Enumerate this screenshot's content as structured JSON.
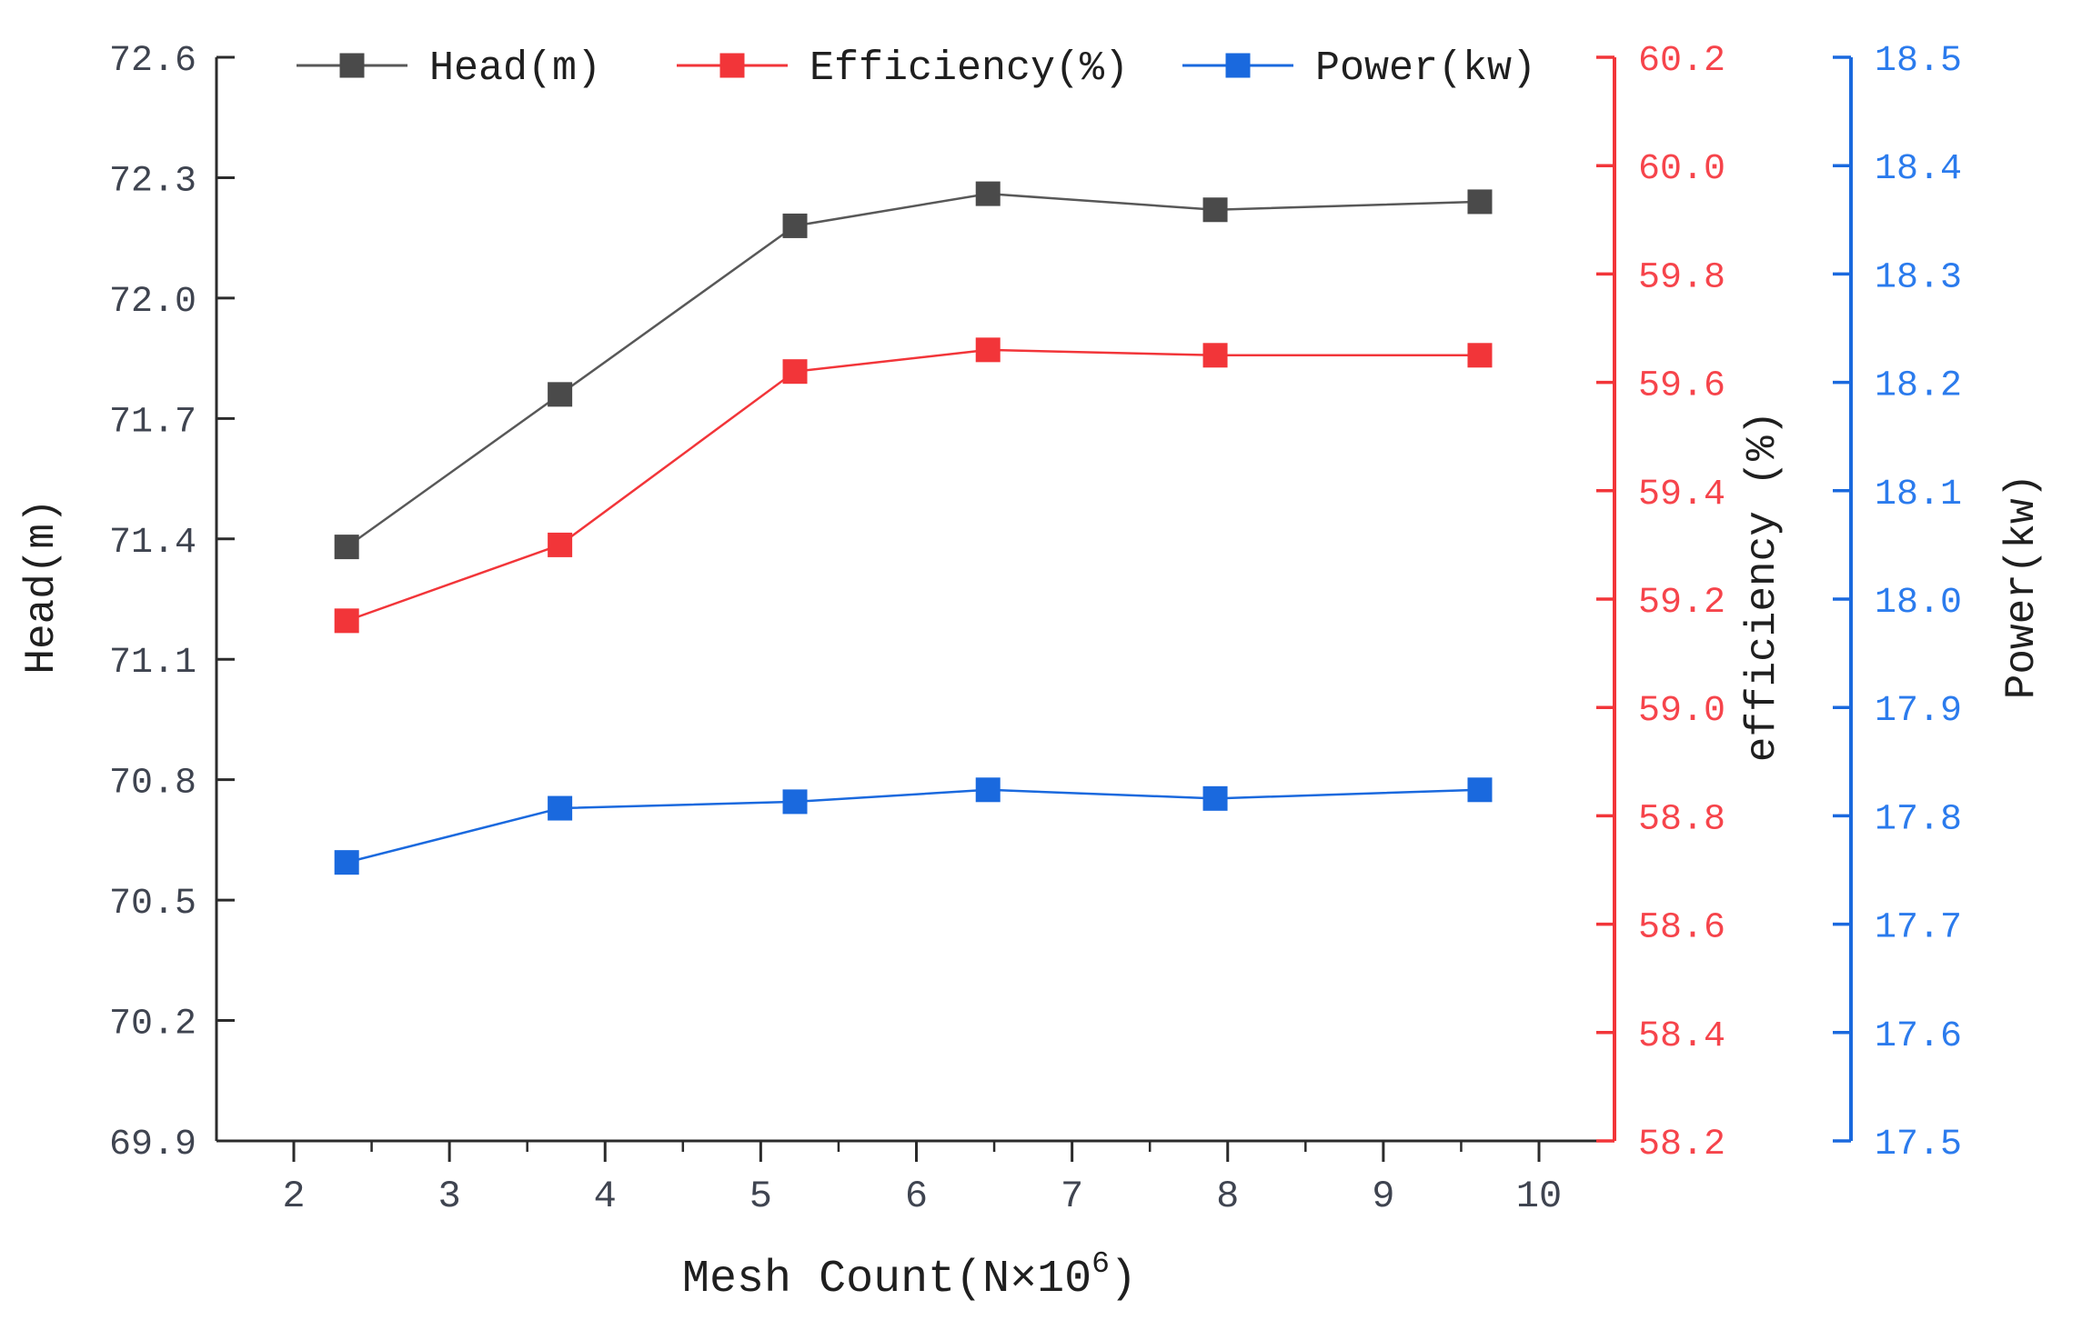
{
  "chart_data": {
    "type": "line",
    "title": "",
    "x": [
      2.34,
      3.71,
      5.22,
      6.46,
      7.92,
      9.62
    ],
    "series": [
      {
        "name": "Head(m)",
        "axis": "left",
        "values": [
          71.38,
          71.76,
          72.18,
          72.26,
          72.22,
          72.24
        ],
        "line_color": "#585858",
        "marker_color": "#4a4a4a"
      },
      {
        "name": "Efficiency(%)",
        "axis": "right1",
        "values": [
          59.16,
          59.3,
          59.62,
          59.66,
          59.65,
          59.65
        ],
        "line_color": "#f23539",
        "marker_color": "#f23539"
      },
      {
        "name": "Power(kw)",
        "axis": "right2",
        "values": [
          17.757,
          17.807,
          17.813,
          17.824,
          17.816,
          17.824
        ],
        "line_color": "#1a69de",
        "marker_color": "#1a69de"
      }
    ],
    "xlabel": {
      "main": "Mesh Count(N×10",
      "sup": "6",
      "end": ")"
    },
    "axes": {
      "x": {
        "min": 1.5,
        "max": 10.5,
        "ticks": [
          "2",
          "3",
          "4",
          "5",
          "6",
          "7",
          "8",
          "9",
          "10"
        ],
        "minor_ticks": [
          2.5,
          3.5,
          4.5,
          5.5,
          6.5,
          7.5,
          8.5,
          9.5
        ],
        "color": "#2b2b2b"
      },
      "left": {
        "min": 69.9,
        "max": 72.6,
        "label": "Head(m)",
        "ticks": [
          "69.9",
          "70.2",
          "70.5",
          "70.8",
          "71.1",
          "71.4",
          "71.7",
          "72.0",
          "72.3",
          "72.6"
        ],
        "color": "#2b2b2b",
        "text_color": "#3f4450",
        "label_color": "#1f1f1f"
      },
      "right1": {
        "min": 58.2,
        "max": 60.2,
        "label": "efficiency (%)",
        "ticks": [
          "58.2",
          "58.4",
          "58.6",
          "58.8",
          "59.0",
          "59.2",
          "59.4",
          "59.6",
          "59.8",
          "60.0",
          "60.2"
        ],
        "color": "#f23539",
        "text_color": "#f6444b",
        "label_color": "#1f1f1f"
      },
      "right2": {
        "min": 17.5,
        "max": 18.5,
        "label": "Power(kw)",
        "ticks": [
          "17.5",
          "17.6",
          "17.7",
          "17.8",
          "17.9",
          "18.0",
          "18.1",
          "18.2",
          "18.3",
          "18.4",
          "18.5"
        ],
        "color": "#1a69de",
        "text_color": "#2b7bed",
        "label_color": "#1f1f1f"
      }
    },
    "legend": {
      "position": "top",
      "items": [
        "Head(m)",
        "Efficiency(%)",
        "Power(kw)"
      ]
    },
    "grid": false
  }
}
